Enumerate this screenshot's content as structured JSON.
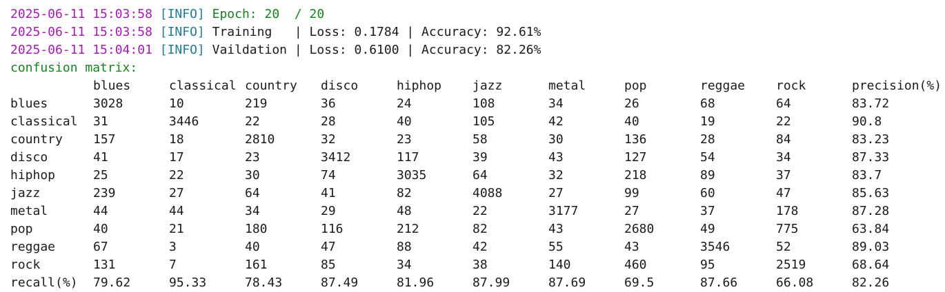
{
  "log": [
    {
      "timestamp": "2025-06-11 15:03:58",
      "level": "[INFO]",
      "message": "Epoch: 20  / 20",
      "message_style": "green"
    },
    {
      "timestamp": "2025-06-11 15:03:58",
      "level": "[INFO]",
      "message": "Training   | Loss: 0.1784 | Accuracy: 92.61%",
      "message_style": "plain"
    },
    {
      "timestamp": "2025-06-11 15:04:01",
      "level": "[INFO]",
      "message": "Vaildation | Loss: 0.6100 | Accuracy: 82.26%",
      "message_style": "plain"
    }
  ],
  "matrix_title": "confusion matrix:",
  "header": [
    "blues",
    "classical",
    "country",
    "disco",
    "hiphop",
    "jazz",
    "metal",
    "pop",
    "reggae",
    "rock",
    "precision(%)"
  ],
  "rows": [
    {
      "label": "blues",
      "values": [
        "3028",
        "10",
        "219",
        "36",
        "24",
        "108",
        "34",
        "26",
        "68",
        "64",
        "83.72"
      ]
    },
    {
      "label": "classical",
      "values": [
        "31",
        "3446",
        "22",
        "28",
        "40",
        "105",
        "42",
        "40",
        "19",
        "22",
        "90.8"
      ]
    },
    {
      "label": "country",
      "values": [
        "157",
        "18",
        "2810",
        "32",
        "23",
        "58",
        "30",
        "136",
        "28",
        "84",
        "83.23"
      ]
    },
    {
      "label": "disco",
      "values": [
        "41",
        "17",
        "23",
        "3412",
        "117",
        "39",
        "43",
        "127",
        "54",
        "34",
        "87.33"
      ]
    },
    {
      "label": "hiphop",
      "values": [
        "25",
        "22",
        "30",
        "74",
        "3035",
        "64",
        "32",
        "218",
        "89",
        "37",
        "83.7"
      ]
    },
    {
      "label": "jazz",
      "values": [
        "239",
        "27",
        "64",
        "41",
        "82",
        "4088",
        "27",
        "99",
        "60",
        "47",
        "85.63"
      ]
    },
    {
      "label": "metal",
      "values": [
        "44",
        "44",
        "34",
        "29",
        "48",
        "22",
        "3177",
        "27",
        "37",
        "178",
        "87.28"
      ]
    },
    {
      "label": "pop",
      "values": [
        "40",
        "21",
        "180",
        "116",
        "212",
        "82",
        "43",
        "2680",
        "49",
        "775",
        "63.84"
      ]
    },
    {
      "label": "reggae",
      "values": [
        "67",
        "3",
        "40",
        "47",
        "88",
        "42",
        "55",
        "43",
        "3546",
        "52",
        "89.03"
      ]
    },
    {
      "label": "rock",
      "values": [
        "131",
        "7",
        "161",
        "85",
        "34",
        "38",
        "140",
        "460",
        "95",
        "2519",
        "68.64"
      ]
    },
    {
      "label": "recall(%)",
      "values": [
        "79.62",
        "95.33",
        "78.43",
        "87.49",
        "81.96",
        "87.99",
        "87.69",
        "69.5",
        "87.66",
        "66.08",
        "82.26"
      ]
    }
  ],
  "colors": {
    "timestamp": "#a21caf",
    "level": "#1f7a9c",
    "accent_green": "#15801f",
    "text": "#1a1a1a",
    "background": "#ffffff"
  }
}
